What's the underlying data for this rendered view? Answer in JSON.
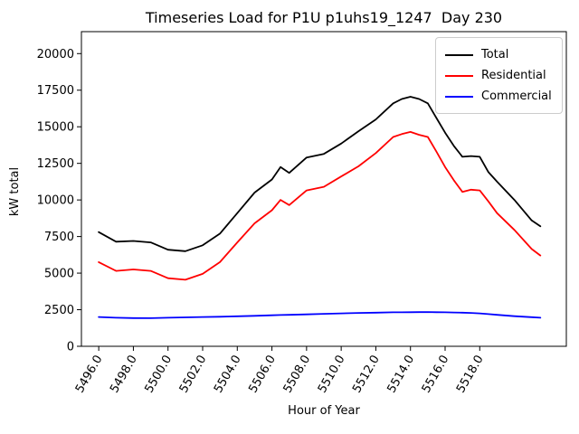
{
  "window": {
    "title": "Timeseries Load for P1U p1uhs19_1247  Day 230"
  },
  "chart_data": {
    "type": "line",
    "title": "Timeseries Load for P1U p1uhs19_1247  Day 230",
    "xlabel": "Hour of Year",
    "ylabel": "kW total",
    "xlim": [
      5495.0,
      5523.0
    ],
    "ylim": [
      0,
      21500
    ],
    "grid": false,
    "legend_position": "upper right",
    "background_color": "#ffffff",
    "xticks": {
      "values": [
        5496,
        5498,
        5500,
        5502,
        5504,
        5506,
        5508,
        5510,
        5512,
        5514,
        5516,
        5518
      ],
      "labels": [
        "5496.0",
        "5498.0",
        "5500.0",
        "5502.0",
        "5504.0",
        "5506.0",
        "5508.0",
        "5510.0",
        "5512.0",
        "5514.0",
        "5516.0",
        "5518.0"
      ],
      "rotation": -60
    },
    "yticks": {
      "values": [
        0,
        2500,
        5000,
        7500,
        10000,
        12500,
        15000,
        17500,
        20000
      ],
      "labels": [
        "0",
        "2500",
        "5000",
        "7500",
        "10000",
        "12500",
        "15000",
        "17500",
        "20000"
      ]
    },
    "x": [
      5496,
      5497,
      5498,
      5499,
      5500,
      5501,
      5502,
      5503,
      5504,
      5505,
      5506,
      5506.5,
      5507,
      5508,
      5509,
      5510,
      5511,
      5512,
      5513,
      5513.5,
      5514,
      5514.5,
      5515,
      5515.5,
      5516,
      5516.5,
      5517,
      5517.5,
      5518,
      5518.5,
      5519,
      5520,
      5521,
      5521.5
    ],
    "series": [
      {
        "name": "Total",
        "color": "#000000",
        "values": [
          7800,
          7150,
          7200,
          7100,
          6600,
          6500,
          6900,
          7700,
          9100,
          10500,
          11400,
          12250,
          11850,
          12900,
          13150,
          13850,
          14700,
          15500,
          16600,
          16900,
          17050,
          16900,
          16600,
          15600,
          14600,
          13700,
          12950,
          13000,
          12950,
          11900,
          11250,
          10000,
          8600,
          8200
        ]
      },
      {
        "name": "Residential",
        "color": "#ff0000",
        "values": [
          5750,
          5150,
          5250,
          5150,
          4650,
          4550,
          4950,
          5750,
          7100,
          8400,
          9300,
          10000,
          9650,
          10650,
          10900,
          11600,
          12300,
          13200,
          14300,
          14500,
          14650,
          14450,
          14300,
          13300,
          12250,
          11350,
          10550,
          10700,
          10650,
          9900,
          9100,
          7950,
          6650,
          6200
        ]
      },
      {
        "name": "Commercial",
        "color": "#0000ff",
        "values": [
          2000,
          1950,
          1930,
          1920,
          1950,
          1980,
          2000,
          2020,
          2050,
          2080,
          2120,
          2135,
          2150,
          2180,
          2220,
          2250,
          2280,
          2300,
          2320,
          2325,
          2330,
          2335,
          2340,
          2330,
          2320,
          2310,
          2300,
          2280,
          2250,
          2200,
          2150,
          2060,
          1990,
          1950
        ]
      }
    ]
  }
}
